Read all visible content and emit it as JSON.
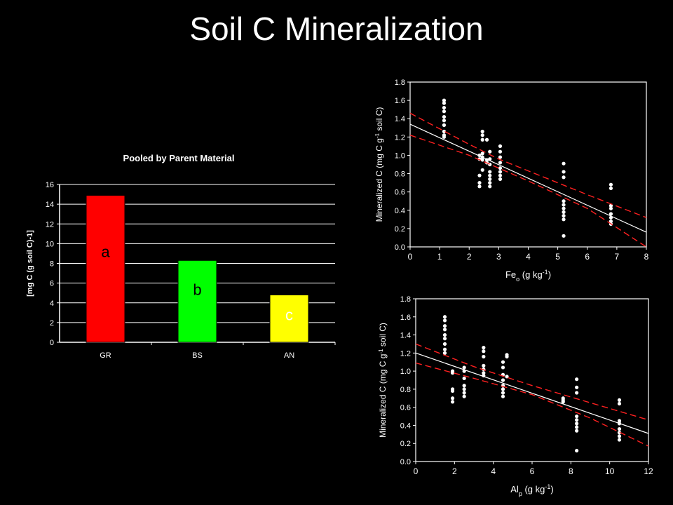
{
  "slide": {
    "title": "Soil C Mineralization"
  },
  "chart_data": [
    {
      "type": "bar",
      "title": "Pooled by Parent Material",
      "ylabel": "[mg C (g soil C)-1]",
      "categories": [
        "GR",
        "BS",
        "AN"
      ],
      "values": [
        14.9,
        8.3,
        4.8
      ],
      "significance_letters": [
        "a",
        "b",
        "c"
      ],
      "colors": [
        "#ff0000",
        "#00ff00",
        "#ffff00"
      ],
      "ylim": [
        0,
        16
      ],
      "yticks": [
        0,
        2,
        4,
        6,
        8,
        10,
        12,
        14,
        16
      ],
      "grid": true
    },
    {
      "type": "scatter",
      "xlabel_main": "Fe",
      "xlabel_sub": "o",
      "xlabel_rest": " (g kg",
      "xlabel_sup": "-1",
      "xlabel_end": ")",
      "ylabel_a": "Mineralized C (mg C g",
      "ylabel_sup": "-1",
      "ylabel_b": " soil C)",
      "xlim": [
        0,
        8
      ],
      "ylim": [
        0,
        1.8
      ],
      "xticks": [
        0,
        1,
        2,
        3,
        4,
        5,
        6,
        7,
        8
      ],
      "yticks": [
        "0.0",
        "0.2",
        "0.4",
        "0.6",
        "0.8",
        "1.0",
        "1.2",
        "1.4",
        "1.6",
        "1.8"
      ],
      "points": [
        [
          1.15,
          1.6
        ],
        [
          1.15,
          1.57
        ],
        [
          1.15,
          1.52
        ],
        [
          1.15,
          1.48
        ],
        [
          1.15,
          1.42
        ],
        [
          1.15,
          1.38
        ],
        [
          1.15,
          1.33
        ],
        [
          1.15,
          1.26
        ],
        [
          1.15,
          1.22
        ],
        [
          1.15,
          1.2
        ],
        [
          2.35,
          1.0
        ],
        [
          2.35,
          0.96
        ],
        [
          2.35,
          0.78
        ],
        [
          2.35,
          0.7
        ],
        [
          2.35,
          0.66
        ],
        [
          2.45,
          1.26
        ],
        [
          2.45,
          1.22
        ],
        [
          2.45,
          1.17
        ],
        [
          2.45,
          1.02
        ],
        [
          2.45,
          0.98
        ],
        [
          2.45,
          0.95
        ],
        [
          2.45,
          0.84
        ],
        [
          2.6,
          1.17
        ],
        [
          2.6,
          0.95
        ],
        [
          2.6,
          0.92
        ],
        [
          2.7,
          1.04
        ],
        [
          2.7,
          0.96
        ],
        [
          2.7,
          0.9
        ],
        [
          2.7,
          0.82
        ],
        [
          2.7,
          0.78
        ],
        [
          2.7,
          0.74
        ],
        [
          2.7,
          0.7
        ],
        [
          2.7,
          0.66
        ],
        [
          3.05,
          1.1
        ],
        [
          3.05,
          1.04
        ],
        [
          3.05,
          0.98
        ],
        [
          3.05,
          0.92
        ],
        [
          3.05,
          0.86
        ],
        [
          3.05,
          0.82
        ],
        [
          3.05,
          0.78
        ],
        [
          3.05,
          0.74
        ],
        [
          5.2,
          0.91
        ],
        [
          5.2,
          0.82
        ],
        [
          5.2,
          0.76
        ],
        [
          5.2,
          0.5
        ],
        [
          5.2,
          0.46
        ],
        [
          5.2,
          0.42
        ],
        [
          5.2,
          0.38
        ],
        [
          5.2,
          0.34
        ],
        [
          5.2,
          0.3
        ],
        [
          5.2,
          0.12
        ],
        [
          6.8,
          0.68
        ],
        [
          6.8,
          0.64
        ],
        [
          6.8,
          0.45
        ],
        [
          6.8,
          0.42
        ],
        [
          6.8,
          0.36
        ],
        [
          6.8,
          0.32
        ],
        [
          6.8,
          0.28
        ],
        [
          6.8,
          0.25
        ]
      ],
      "fit": [
        [
          0,
          1.34
        ],
        [
          8,
          0.16
        ]
      ],
      "ci_upper": [
        [
          0,
          1.46
        ],
        [
          2,
          1.12
        ],
        [
          3,
          0.96
        ],
        [
          4,
          0.83
        ],
        [
          6,
          0.57
        ],
        [
          8,
          0.32
        ]
      ],
      "ci_lower": [
        [
          0,
          1.22
        ],
        [
          2,
          1.0
        ],
        [
          3,
          0.86
        ],
        [
          4,
          0.72
        ],
        [
          6,
          0.42
        ],
        [
          8,
          0.0
        ]
      ]
    },
    {
      "type": "scatter",
      "xlabel_main": "Al",
      "xlabel_sub": "p",
      "xlabel_rest": " (g kg",
      "xlabel_sup": "-1",
      "xlabel_end": ")",
      "ylabel_a": "Mineralized C (mg C g",
      "ylabel_sup": "-1",
      "ylabel_b": " soil C)",
      "xlim": [
        0,
        12
      ],
      "ylim": [
        0,
        1.8
      ],
      "xticks": [
        0,
        2,
        4,
        6,
        8,
        10,
        12
      ],
      "yticks": [
        "0.0",
        "0.2",
        "0.4",
        "0.6",
        "0.8",
        "1.0",
        "1.2",
        "1.4",
        "1.6",
        "1.8"
      ],
      "points": [
        [
          1.5,
          1.6
        ],
        [
          1.5,
          1.56
        ],
        [
          1.5,
          1.5
        ],
        [
          1.5,
          1.46
        ],
        [
          1.5,
          1.4
        ],
        [
          1.5,
          1.36
        ],
        [
          1.5,
          1.3
        ],
        [
          1.5,
          1.24
        ],
        [
          1.5,
          1.2
        ],
        [
          1.9,
          1.0
        ],
        [
          1.9,
          0.98
        ],
        [
          1.9,
          0.8
        ],
        [
          1.9,
          0.78
        ],
        [
          1.9,
          0.7
        ],
        [
          1.9,
          0.66
        ],
        [
          2.5,
          1.04
        ],
        [
          2.5,
          1.0
        ],
        [
          2.5,
          0.92
        ],
        [
          2.5,
          0.84
        ],
        [
          2.5,
          0.8
        ],
        [
          2.5,
          0.76
        ],
        [
          2.5,
          0.72
        ],
        [
          3.5,
          1.26
        ],
        [
          3.5,
          1.22
        ],
        [
          3.5,
          1.16
        ],
        [
          3.5,
          1.06
        ],
        [
          3.5,
          1.02
        ],
        [
          3.5,
          0.98
        ],
        [
          3.5,
          0.95
        ],
        [
          4.5,
          1.1
        ],
        [
          4.5,
          1.04
        ],
        [
          4.5,
          0.96
        ],
        [
          4.5,
          0.9
        ],
        [
          4.5,
          0.84
        ],
        [
          4.5,
          0.8
        ],
        [
          4.5,
          0.76
        ],
        [
          4.5,
          0.72
        ],
        [
          4.7,
          1.18
        ],
        [
          4.7,
          1.16
        ],
        [
          4.7,
          0.94
        ],
        [
          7.6,
          0.7
        ],
        [
          7.6,
          0.68
        ],
        [
          7.6,
          0.66
        ],
        [
          8.3,
          0.91
        ],
        [
          8.3,
          0.82
        ],
        [
          8.3,
          0.76
        ],
        [
          8.3,
          0.5
        ],
        [
          8.3,
          0.46
        ],
        [
          8.3,
          0.42
        ],
        [
          8.3,
          0.38
        ],
        [
          8.3,
          0.34
        ],
        [
          8.3,
          0.12
        ],
        [
          10.5,
          0.68
        ],
        [
          10.5,
          0.64
        ],
        [
          10.5,
          0.45
        ],
        [
          10.5,
          0.42
        ],
        [
          10.5,
          0.36
        ],
        [
          10.5,
          0.32
        ],
        [
          10.5,
          0.28
        ],
        [
          10.5,
          0.24
        ]
      ],
      "fit": [
        [
          0,
          1.2
        ],
        [
          12,
          0.31
        ]
      ],
      "ci_upper": [
        [
          0,
          1.3
        ],
        [
          3,
          1.05
        ],
        [
          6,
          0.84
        ],
        [
          9,
          0.65
        ],
        [
          12,
          0.46
        ]
      ],
      "ci_lower": [
        [
          0,
          1.09
        ],
        [
          3,
          0.92
        ],
        [
          6,
          0.74
        ],
        [
          9,
          0.48
        ],
        [
          12,
          0.17
        ]
      ]
    }
  ]
}
